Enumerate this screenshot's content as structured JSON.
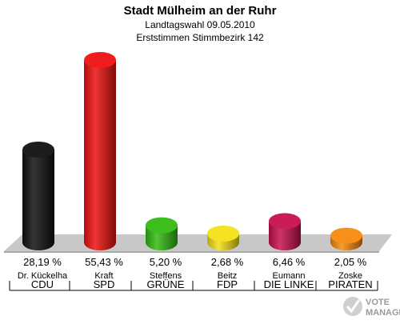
{
  "title": "Stadt Mülheim an der Ruhr",
  "subtitle_1": "Landtagswahl 09.05.2010",
  "subtitle_2": "Erststimmen Stimmbezirk 142",
  "logo_word_1": "VOTE",
  "logo_word_2": "MANAGER",
  "chart_data": {
    "type": "bar",
    "title": "Stadt Mülheim an der Ruhr",
    "subtitle": "Landtagswahl 09.05.2010 / Erststimmen Stimmbezirk 142",
    "ylim": [
      0,
      60
    ],
    "grid": false,
    "bars": [
      {
        "candidate": "Dr. Kückelha",
        "party": "CDU",
        "value": 28.19,
        "label": "28,19 %",
        "color": "#111111"
      },
      {
        "candidate": "Kraft",
        "party": "SPD",
        "value": 55.43,
        "label": "55,43 %",
        "color": "#ee1111"
      },
      {
        "candidate": "Steffens",
        "party": "GRÜNE",
        "value": 5.2,
        "label": "5,20 %",
        "color": "#33bb11"
      },
      {
        "candidate": "Beitz",
        "party": "FDP",
        "value": 2.68,
        "label": "2,68 %",
        "color": "#f4e016"
      },
      {
        "candidate": "Eumann",
        "party": "DIE LINKE",
        "value": 6.46,
        "label": "6,46 %",
        "color": "#c8104e"
      },
      {
        "candidate": "Zoske",
        "party": "PIRATEN",
        "value": 2.05,
        "label": "2,05 %",
        "color": "#f68a0c"
      }
    ]
  }
}
